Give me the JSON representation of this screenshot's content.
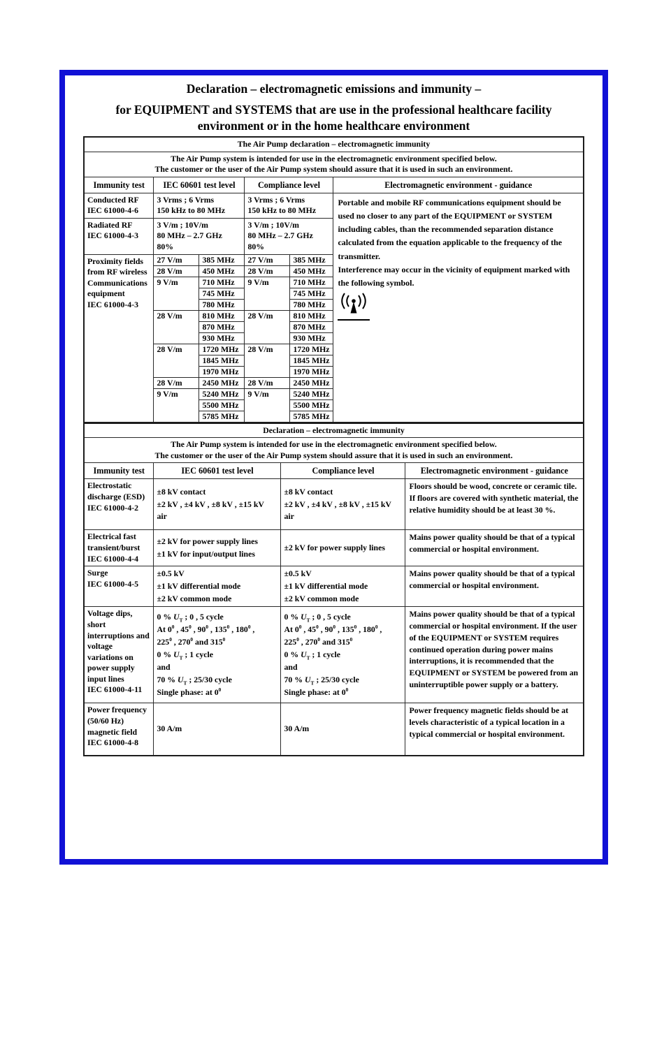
{
  "doc": {
    "title_line1": "Declaration – electromagnetic emissions and immunity –",
    "title_line2": "for EQUIPMENT and SYSTEMS that are use in the professional healthcare facility",
    "title_line3": "environment or in the home healthcare environment",
    "frame_color": "#1111d6"
  },
  "table1": {
    "caption": "The Air Pump declaration – electromagnetic immunity",
    "intro1": "The Air Pump system is intended for use in the electromagnetic environment specified below.",
    "intro2": "The customer or the user of the Air Pump system should assure that it is used in such an environment.",
    "headers": [
      "Immunity test",
      "IEC 60601 test level",
      "Compliance level",
      "Electromagnetic environment - guidance"
    ],
    "rows": [
      {
        "test": [
          "Conducted RF",
          "IEC 61000-4-6"
        ],
        "level": [
          "3 Vrms ; 6 Vrms",
          "150 kHz to 80 MHz"
        ],
        "compliance": [
          "3 Vrms ; 6 Vrms",
          "150 kHz to 80 MHz"
        ]
      },
      {
        "test": [
          "Radiated RF",
          "IEC 61000-4-3"
        ],
        "level": [
          "3 V/m ; 10V/m",
          "80 MHz – 2.7 GHz",
          "80%"
        ],
        "compliance": [
          "3 V/m ; 10V/m",
          "80 MHz – 2.7 GHz",
          "80%"
        ]
      }
    ],
    "proximity": {
      "label": [
        "Proximity fields",
        "from RF wireless",
        "Communications",
        "equipment",
        "IEC 61000-4-3"
      ],
      "groups": [
        {
          "vm": "27 V/m",
          "freqs": [
            "385 MHz"
          ]
        },
        {
          "vm": "28 V/m",
          "freqs": [
            "450 MHz"
          ]
        },
        {
          "vm": "9 V/m",
          "freqs": [
            "710 MHz",
            "745 MHz",
            "780 MHz"
          ]
        },
        {
          "vm": "28 V/m",
          "freqs": [
            "810 MHz",
            "870 MHz",
            "930 MHz"
          ]
        },
        {
          "vm": "28 V/m",
          "freqs": [
            "1720 MHz",
            "1845 MHz",
            "1970 MHz"
          ]
        },
        {
          "vm": "28 V/m",
          "freqs": [
            "2450 MHz"
          ]
        },
        {
          "vm": "9 V/m",
          "freqs": [
            "5240 MHz",
            "5500 MHz",
            "5785 MHz"
          ]
        }
      ]
    },
    "guidance": {
      "p1": "Portable and mobile RF communications equipment should be used no closer to any part of the EQUIPMENT or SYSTEM including cables, than the recommended separation distance calculated from the equation applicable to the frequency of the transmitter.",
      "p2": "Interference may occur in the vicinity of equipment marked with the following symbol.",
      "symbol": "non-ionizing-radiation"
    }
  },
  "table2": {
    "caption": "Declaration – electromagnetic immunity",
    "intro1": "The Air Pump system is intended for use in the electromagnetic environment specified below.",
    "intro2": "The customer or the user of the Air Pump system should assure that it is used in such an environment.",
    "headers": [
      "Immunity test",
      "IEC 60601 test level",
      "Compliance level",
      "Electromagnetic environment - guidance"
    ],
    "rows": [
      {
        "test": [
          "Electrostatic",
          "discharge (ESD)",
          "IEC 61000-4-2"
        ],
        "level": [
          "±8 kV contact",
          "±2 kV , ±4 kV , ±8 kV , ±15 kV",
          "air"
        ],
        "compliance": [
          "±8 kV contact",
          "±2 kV , ±4 kV , ±8 kV , ±15 kV",
          "air"
        ],
        "guidance": "Floors should be wood, concrete or ceramic tile. If floors are covered with synthetic material, the relative humidity should be at least 30 %."
      },
      {
        "test": [
          "Electrical fast",
          "transient/burst",
          "IEC 61000-4-4"
        ],
        "level": [
          "±2 kV for power supply lines",
          "±1 kV for input/output lines"
        ],
        "compliance": [
          "±2 kV for power supply lines"
        ],
        "guidance": "Mains power quality should be that of a typical commercial or hospital environment."
      },
      {
        "test": [
          "Surge",
          "IEC 61000-4-5"
        ],
        "level": [
          "±0.5 kV",
          "±1 kV differential mode",
          "±2 kV common mode"
        ],
        "compliance": [
          "±0.5 kV",
          "±1 kV differential mode",
          "±2 kV common mode"
        ],
        "guidance": "Mains power quality should be that of a typical commercial or hospital environment."
      },
      {
        "test": [
          "Voltage dips,",
          "short",
          "interruptions and",
          "voltage",
          "variations on",
          "power supply",
          "input lines",
          "IEC 61000-4-11"
        ],
        "level": [
          "0 % <i>U</i><sub>T</sub> ; 0 , 5 cycle",
          "At 0<sup>0</sup> , 45<sup>0</sup> , 90<sup>0</sup> , 135<sup>0</sup> , 180<sup>0</sup> ,",
          "225<sup>0</sup> , 270<sup>0</sup> and 315<sup>0</sup>",
          "0 % <i>U</i><sub>T</sub> ; 1 cycle",
          "and",
          "70 % <i>U</i><sub>T</sub> ; 25/30 cycle",
          "Single phase: at 0<sup>0</sup>"
        ],
        "compliance": [
          "0 % <i>U</i><sub>T</sub> ; 0 , 5 cycle",
          "At 0<sup>0</sup> , 45<sup>0</sup> , 90<sup>0</sup> , 135<sup>0</sup> , 180<sup>0</sup> ,",
          "225<sup>0</sup> , 270<sup>0</sup> and 315<sup>0</sup>",
          "0 % <i>U</i><sub>T</sub> ; 1 cycle",
          "and",
          "70 % <i>U</i><sub>T</sub> ; 25/30 cycle",
          "Single phase: at 0<sup>0</sup>"
        ],
        "guidance": "Mains power quality should be that of a typical commercial or hospital environment. If the user of the EQUIPMENT or SYSTEM requires continued operation during power mains interruptions, it is recommended that the EQUIPMENT or SYSTEM be powered from an uninterruptible power supply or a battery."
      },
      {
        "test": [
          "Power frequency",
          "(50/60 Hz)",
          "magnetic field",
          "IEC 61000-4-8"
        ],
        "level": [
          "30 A/m"
        ],
        "compliance": [
          "30 A/m"
        ],
        "guidance": "Power frequency magnetic fields should be at levels characteristic of a typical location in a typical commercial or hospital environment."
      }
    ]
  }
}
